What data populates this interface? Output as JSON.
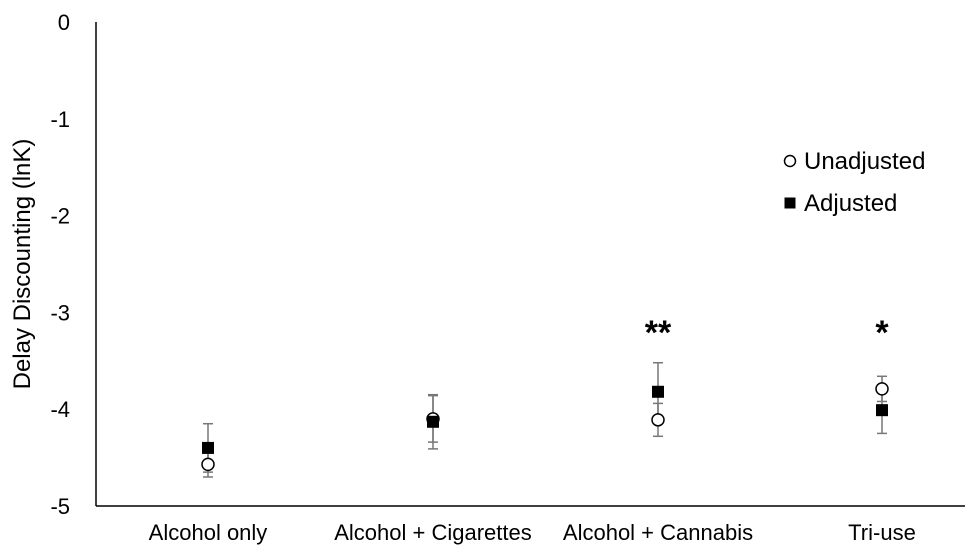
{
  "chart_data": {
    "type": "scatter",
    "title": "",
    "xlabel": "",
    "ylabel": "Delay Discounting (lnK)",
    "ylim": [
      -5,
      0
    ],
    "yticks": [
      "0",
      "-1",
      "-2",
      "-3",
      "-4",
      "-5"
    ],
    "categories": [
      "Alcohol only",
      "Alcohol + Cigarettes",
      "Alcohol + Cannabis",
      "Tri-use"
    ],
    "series": [
      {
        "name": "Unadjusted",
        "marker": "circle-open",
        "values": [
          -4.57,
          -4.1,
          -4.11,
          -3.79
        ],
        "errors": [
          0.13,
          0.24,
          0.17,
          0.13
        ]
      },
      {
        "name": "Adjusted",
        "marker": "square-filled",
        "values": [
          -4.4,
          -4.13,
          -3.82,
          -4.01
        ],
        "errors": [
          0.25,
          0.28,
          0.3,
          0.24
        ]
      }
    ],
    "annotations": [
      "",
      "",
      "**",
      "*"
    ],
    "legend_position": "right",
    "grid": false
  }
}
